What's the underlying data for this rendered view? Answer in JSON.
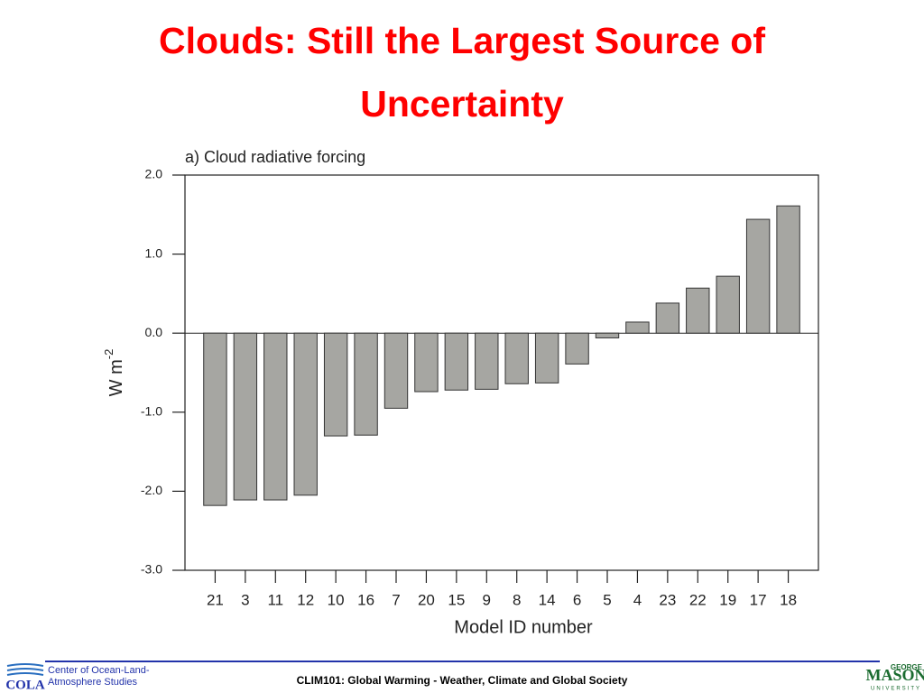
{
  "slide_title": "Clouds: Still the Largest Source of Uncertainty",
  "chart_data": {
    "type": "bar",
    "title": "a) Cloud radiative forcing",
    "xlabel": "Model ID number",
    "ylabel": {
      "base": "W m",
      "superscript": "-2"
    },
    "categories": [
      "21",
      "3",
      "11",
      "12",
      "10",
      "16",
      "7",
      "20",
      "15",
      "9",
      "8",
      "14",
      "6",
      "5",
      "4",
      "23",
      "22",
      "19",
      "17",
      "18"
    ],
    "values": [
      -2.18,
      -2.11,
      -2.11,
      -2.05,
      -1.3,
      -1.29,
      -0.95,
      -0.74,
      -0.72,
      -0.71,
      -0.64,
      -0.63,
      -0.39,
      -0.06,
      0.14,
      0.38,
      0.57,
      0.72,
      1.44,
      1.61
    ],
    "color": "#a6a6a2",
    "ylim": [
      -3,
      2
    ],
    "yticks": [
      {
        "value": -3,
        "label": "-3.0"
      },
      {
        "value": -2,
        "label": "-2.0"
      },
      {
        "value": -1,
        "label": "-1.0"
      },
      {
        "value": 0,
        "label": "0.0"
      },
      {
        "value": 1,
        "label": "1.0"
      },
      {
        "value": 2,
        "label": "2.0"
      }
    ],
    "zero_line": true
  },
  "footer": {
    "org_logo": "COLA",
    "org_name": [
      "Center of Ocean-Land-",
      "Atmosphere Studies"
    ],
    "course": "CLIM101: Global Warming - Weather, Climate and Global Society",
    "university": [
      "GEORGE",
      "MASON",
      "UNIVERSITY"
    ]
  }
}
